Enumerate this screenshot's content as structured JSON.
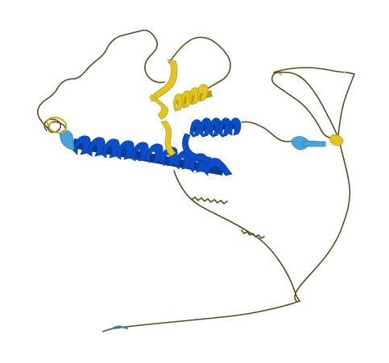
{
  "image": {
    "subject": "protein-structure-cartoon",
    "background": "#ffffff",
    "palette": {
      "very_high_confidence": "#0a4fc8",
      "confident": "#4aa3d8",
      "low_confidence": "#e3c61a",
      "very_low_confidence": "#5a4a22"
    }
  }
}
